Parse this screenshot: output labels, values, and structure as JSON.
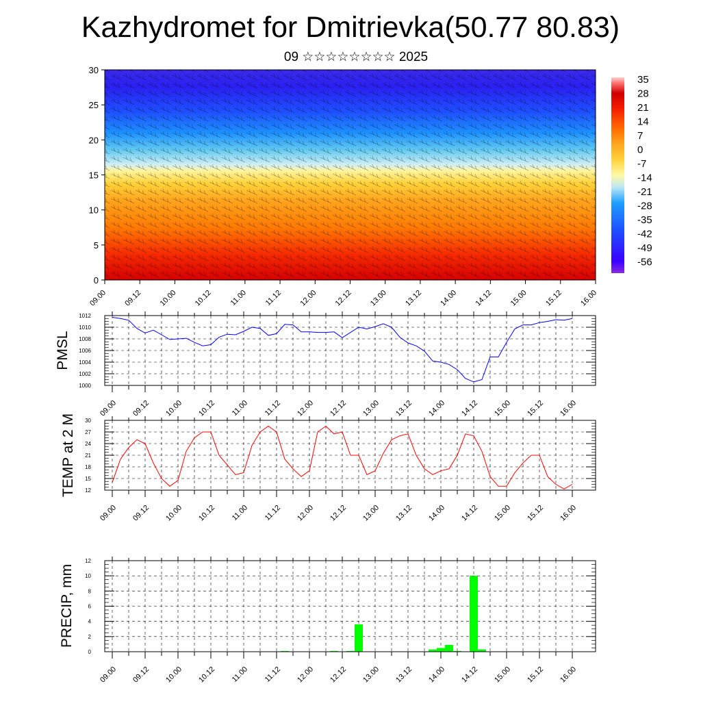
{
  "header": {
    "title": "Kazhydromet for Dmitrievka(50.77 80.83)",
    "subtitle": "09 ☆☆☆☆☆☆☆☆ 2025"
  },
  "time_ticks": [
    "09.00",
    "09.12",
    "10.00",
    "10.12",
    "11.00",
    "11.12",
    "12.00",
    "12.12",
    "13.00",
    "13.12",
    "14.00",
    "14.12",
    "15.00",
    "15.12",
    "16.00"
  ],
  "colors": {
    "pmsl_line": "#0000ff",
    "temp_line": "#ff0000",
    "precip_bar": "#00ff00",
    "grid": "#000000"
  },
  "chart_data": [
    {
      "type": "heatmap",
      "name": "cross-section",
      "description_visible": "temperature cross-section with wind barbs",
      "ylim": [
        0,
        30
      ],
      "yticks": [
        0,
        5,
        10,
        15,
        20,
        25,
        30
      ],
      "colorbar_labels": [
        "35",
        "28",
        "21",
        "14",
        "7",
        "0",
        "-7",
        "-14",
        "-21",
        "-28",
        "-35",
        "-42",
        "-49",
        "-56"
      ],
      "colorbar_range": [
        -60,
        38
      ],
      "colorbar_colors": [
        "#8a2be2",
        "#3a00ff",
        "#1e50ff",
        "#1ea0ff",
        "#5fd0f0",
        "#d8f0f5",
        "#fff8a8",
        "#ffd23a",
        "#ffa51e",
        "#ff6a00",
        "#f51c00",
        "#d00000",
        "#ff7070",
        "#ffd0d0"
      ]
    },
    {
      "type": "line",
      "name": "pmsl",
      "ylabel": "PMSL",
      "ylim": [
        1000,
        1012
      ],
      "yticks": [
        1000,
        1002,
        1004,
        1006,
        1008,
        1010,
        1012
      ],
      "x_hours": [
        0,
        3,
        6,
        9,
        12,
        15,
        18,
        21,
        24,
        27,
        30,
        33,
        36,
        39,
        42,
        45,
        48,
        51,
        54,
        57,
        60,
        63,
        66,
        69,
        72,
        75,
        78,
        81,
        84,
        87,
        90,
        93,
        96,
        99,
        102,
        105,
        108,
        111,
        114,
        117,
        120,
        123,
        126,
        129,
        132,
        135,
        138,
        141,
        144,
        147,
        150,
        153,
        156,
        159,
        162,
        165,
        168
      ],
      "values": [
        1011.7,
        1011.5,
        1011.2,
        1009.8,
        1009.0,
        1009.5,
        1008.7,
        1007.9,
        1008.0,
        1008.1,
        1007.4,
        1006.8,
        1007.0,
        1008.3,
        1008.8,
        1008.7,
        1009.3,
        1010.0,
        1009.8,
        1008.6,
        1008.9,
        1010.5,
        1010.4,
        1009.2,
        1009.2,
        1009.1,
        1009.1,
        1009.2,
        1008.2,
        1009.1,
        1010.0,
        1009.7,
        1010.1,
        1010.6,
        1010.0,
        1008.3,
        1007.3,
        1006.8,
        1005.9,
        1004.2,
        1004.0,
        1003.6,
        1002.7,
        1001.2,
        1000.6,
        1001.0,
        1004.9,
        1004.9,
        1007.4,
        1009.7,
        1010.4,
        1010.4,
        1010.8,
        1011.0,
        1011.3,
        1011.2,
        1011.5
      ]
    },
    {
      "type": "line",
      "name": "temp",
      "ylabel": "TEMP at 2 M",
      "ylim": [
        12,
        30
      ],
      "yticks": [
        12,
        15,
        18,
        21,
        24,
        27,
        30
      ],
      "x_hours": [
        0,
        3,
        6,
        9,
        12,
        15,
        18,
        21,
        24,
        27,
        30,
        33,
        36,
        39,
        42,
        45,
        48,
        51,
        54,
        57,
        60,
        63,
        66,
        69,
        72,
        75,
        78,
        81,
        84,
        87,
        90,
        93,
        96,
        99,
        102,
        105,
        108,
        111,
        114,
        117,
        120,
        123,
        126,
        129,
        132,
        135,
        138,
        141,
        144,
        147,
        150,
        153,
        156,
        159,
        162,
        165,
        168
      ],
      "values": [
        14.0,
        20.0,
        23.0,
        25.0,
        24.0,
        19.0,
        15.0,
        13.0,
        14.5,
        22.0,
        25.5,
        27.0,
        27.0,
        21.0,
        18.5,
        16.0,
        16.5,
        23.5,
        27.0,
        28.5,
        27.0,
        20.0,
        17.5,
        15.5,
        17.0,
        27.0,
        28.5,
        26.5,
        27.0,
        21.0,
        21.0,
        16.0,
        17.0,
        21.5,
        25.0,
        26.0,
        26.5,
        21.0,
        17.5,
        16.0,
        17.0,
        17.5,
        21.0,
        26.5,
        26.0,
        22.0,
        15.5,
        13.0,
        13.0,
        16.5,
        19.0,
        21.0,
        21.0,
        15.5,
        13.5,
        12.3,
        13.5
      ]
    },
    {
      "type": "bar",
      "name": "precip",
      "ylabel": "PRECIP, mm",
      "ylim": [
        0,
        12
      ],
      "yticks": [
        0,
        2,
        4,
        6,
        8,
        10,
        12
      ],
      "x_hours": [
        63,
        81,
        87,
        90,
        117,
        120,
        123,
        126,
        132,
        135
      ],
      "values": [
        0.1,
        0.1,
        0.1,
        3.6,
        0.3,
        0.5,
        0.9,
        0.1,
        10.0,
        0.3
      ]
    }
  ]
}
